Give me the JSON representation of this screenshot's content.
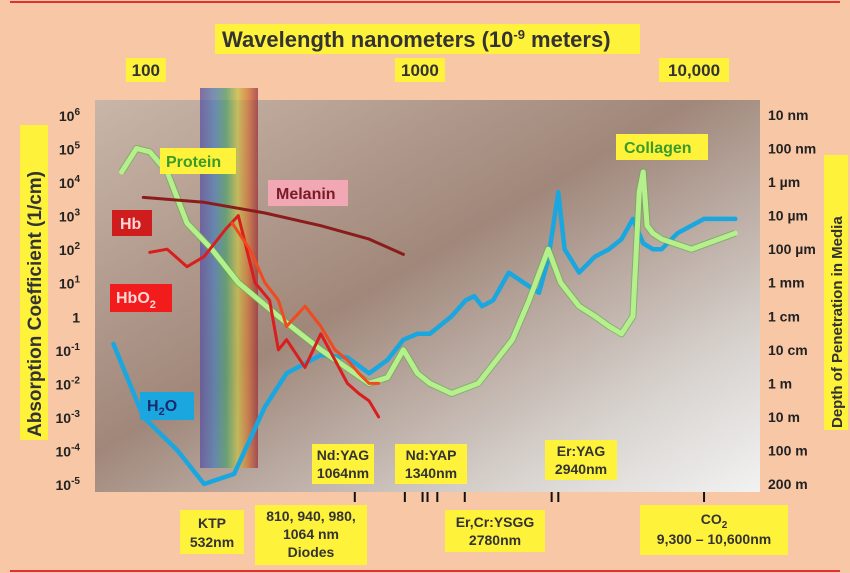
{
  "chart_data": {
    "type": "line",
    "title": "Wavelength nanometers (10",
    "title_exp": "-9",
    "title_tail": " meters)",
    "ylabel": "Absorption Coefficient (1/cm)",
    "y2label": "Depth of Penetration in Media",
    "x_scale": "log",
    "xlim": [
      60,
      16000
    ],
    "y_scale": "log",
    "ylim": [
      1e-05,
      1000000.0
    ],
    "top_ticks": [
      "100",
      "1000",
      "10,000"
    ],
    "left_ticks": [
      {
        "base": "10",
        "exp": "6",
        "v": 1000000.0
      },
      {
        "base": "10",
        "exp": "5",
        "v": 100000.0
      },
      {
        "base": "10",
        "exp": "4",
        "v": 10000.0
      },
      {
        "base": "10",
        "exp": "3",
        "v": 1000.0
      },
      {
        "base": "10",
        "exp": "2",
        "v": 100.0
      },
      {
        "base": "10",
        "exp": "1",
        "v": 10.0
      },
      {
        "base": "1",
        "exp": "",
        "v": 1
      },
      {
        "base": "10",
        "exp": "-1",
        "v": 0.1
      },
      {
        "base": "10",
        "exp": "-2",
        "v": 0.01
      },
      {
        "base": "10",
        "exp": "-3",
        "v": 0.001
      },
      {
        "base": "10",
        "exp": "-4",
        "v": 0.0001
      },
      {
        "base": "10",
        "exp": "-5",
        "v": 1e-05
      }
    ],
    "right_ticks": [
      {
        "label": "10 nm",
        "v": 1000000.0
      },
      {
        "label": "100 nm",
        "v": 100000.0
      },
      {
        "label": "1 µm",
        "v": 10000.0
      },
      {
        "label": "10 µm",
        "v": 1000.0
      },
      {
        "label": "100 µm",
        "v": 100.0
      },
      {
        "label": "1 mm",
        "v": 10.0
      },
      {
        "label": "1 cm",
        "v": 1
      },
      {
        "label": "10 cm",
        "v": 0.1
      },
      {
        "label": "1 m",
        "v": 0.01
      },
      {
        "label": "10 m",
        "v": 0.001
      },
      {
        "label": "100 m",
        "v": 0.0001
      },
      {
        "label": "200 m",
        "v": 1e-05
      }
    ],
    "series": [
      {
        "name": "H2O",
        "color": "#1aa7e0",
        "x": [
          70,
          90,
          120,
          150,
          193,
          250,
          300,
          400,
          500,
          600,
          700,
          800,
          900,
          1000,
          1200,
          1350,
          1450,
          1550,
          1700,
          1940,
          2200,
          2500,
          2700,
          2940,
          3100,
          3500,
          4000,
          4500,
          5000,
          5500,
          6000,
          6500,
          7000,
          8000,
          10000,
          13000
        ],
        "y": [
          0.15,
          0.001,
          0.0001,
          1e-05,
          2e-05,
          0.002,
          0.02,
          0.07,
          0.06,
          0.02,
          0.05,
          0.2,
          0.3,
          0.3,
          1,
          3,
          4,
          2,
          3,
          20,
          10,
          5,
          50,
          5000,
          100,
          20,
          60,
          100,
          200,
          800,
          150,
          100,
          100,
          300,
          800,
          800
        ]
      },
      {
        "name": "Protein",
        "color": "#b6f08c",
        "x": [
          75,
          85,
          95,
          110,
          130,
          160,
          200,
          280,
          400,
          600,
          700,
          800,
          900,
          1000,
          1200,
          1500,
          2000,
          2300,
          2700,
          3000,
          3500,
          4000,
          4500,
          5000,
          5500,
          5800,
          6000,
          6100,
          6200,
          6500,
          7000,
          9000,
          13000
        ],
        "y": [
          20000,
          100000,
          80000,
          20000,
          600,
          100,
          10,
          1,
          0.1,
          0.01,
          0.015,
          0.1,
          0.02,
          0.01,
          0.005,
          0.01,
          0.2,
          3,
          100,
          10,
          2,
          1,
          0.5,
          0.3,
          1,
          5000,
          20000,
          3000,
          500,
          300,
          200,
          100,
          300
        ]
      },
      {
        "name": "Melanin",
        "color": "#8a1c1c",
        "x": [
          90,
          150,
          250,
          400,
          600,
          800
        ],
        "y": [
          3500,
          2500,
          1200,
          500,
          200,
          70
        ]
      },
      {
        "name": "Hb",
        "color": "#d81e1e",
        "x": [
          95,
          110,
          130,
          150,
          180,
          200,
          230,
          260,
          280,
          300,
          350,
          400,
          450,
          500,
          550,
          600,
          650
        ],
        "y": [
          80,
          100,
          30,
          60,
          400,
          1000,
          10,
          3,
          0.1,
          0.2,
          0.03,
          0.3,
          0.05,
          0.01,
          0.005,
          0.003,
          0.001
        ]
      },
      {
        "name": "HbO2",
        "color": "#f04a1e",
        "x": [
          190,
          220,
          250,
          280,
          300,
          350,
          400,
          450,
          500,
          550,
          600,
          650
        ],
        "y": [
          600,
          100,
          10,
          3,
          0.5,
          2,
          0.5,
          0.1,
          0.05,
          0.02,
          0.01,
          0.01
        ]
      }
    ],
    "series_labels": {
      "protein": "Protein",
      "melanin": "Melanin",
      "hb": "Hb",
      "hbo2_base": "HbO",
      "hbo2_sub": "2",
      "h2o_base": "H",
      "h2o_sub": "2",
      "h2o_tail": "O",
      "collagen": "Collagen"
    },
    "lasers": [
      {
        "lines": [
          "KTP",
          "532nm"
        ]
      },
      {
        "lines": [
          "810, 940, 980,",
          "1064 nm",
          "Diodes"
        ]
      },
      {
        "lines": [
          "Nd:YAG",
          "1064nm"
        ]
      },
      {
        "lines": [
          "Nd:YAP",
          "1340nm"
        ]
      },
      {
        "lines": [
          "Er,Cr:YSGG",
          "2780nm"
        ]
      },
      {
        "lines": [
          "Er:YAG",
          "2940nm"
        ]
      },
      {
        "lines": [
          "CO",
          "9,300 – 10,600nm"
        ],
        "sub": "2"
      }
    ],
    "laser_ticks": [
      532,
      810,
      940,
      980,
      1064,
      1340,
      2780,
      2940,
      10000
    ],
    "colors": {
      "background": "#f7c7a6",
      "label_fill": "#fff23a",
      "frame": "#e03030"
    }
  }
}
